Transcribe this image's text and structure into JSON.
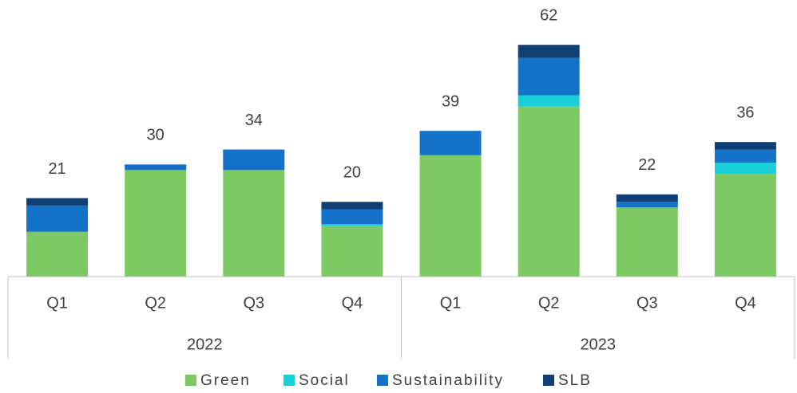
{
  "chart_data": {
    "type": "stacked_bar",
    "categories": [
      "Q1",
      "Q2",
      "Q3",
      "Q4",
      "Q1",
      "Q2",
      "Q3",
      "Q4"
    ],
    "groups": [
      "2022",
      "2023"
    ],
    "series": [
      {
        "name": "Green",
        "color": "#7dc962",
        "values": [
          12,
          28.5,
          28.5,
          13.5,
          32.5,
          45.5,
          18.5,
          27.5
        ]
      },
      {
        "name": "Social",
        "color": "#19cfd8",
        "values": [
          0,
          0,
          0,
          0.5,
          0,
          3,
          0,
          3
        ]
      },
      {
        "name": "Sustainability",
        "color": "#1473c9",
        "values": [
          7,
          1.5,
          5.5,
          4,
          6.5,
          10,
          1.5,
          3.5
        ]
      },
      {
        "name": "SLB",
        "color": "#0f3f73",
        "values": [
          2,
          0,
          0,
          2,
          0,
          3.5,
          2,
          2
        ]
      }
    ],
    "totals": [
      21,
      30,
      34,
      20,
      39,
      62,
      22,
      36
    ],
    "ylim": [
      0,
      74
    ]
  }
}
